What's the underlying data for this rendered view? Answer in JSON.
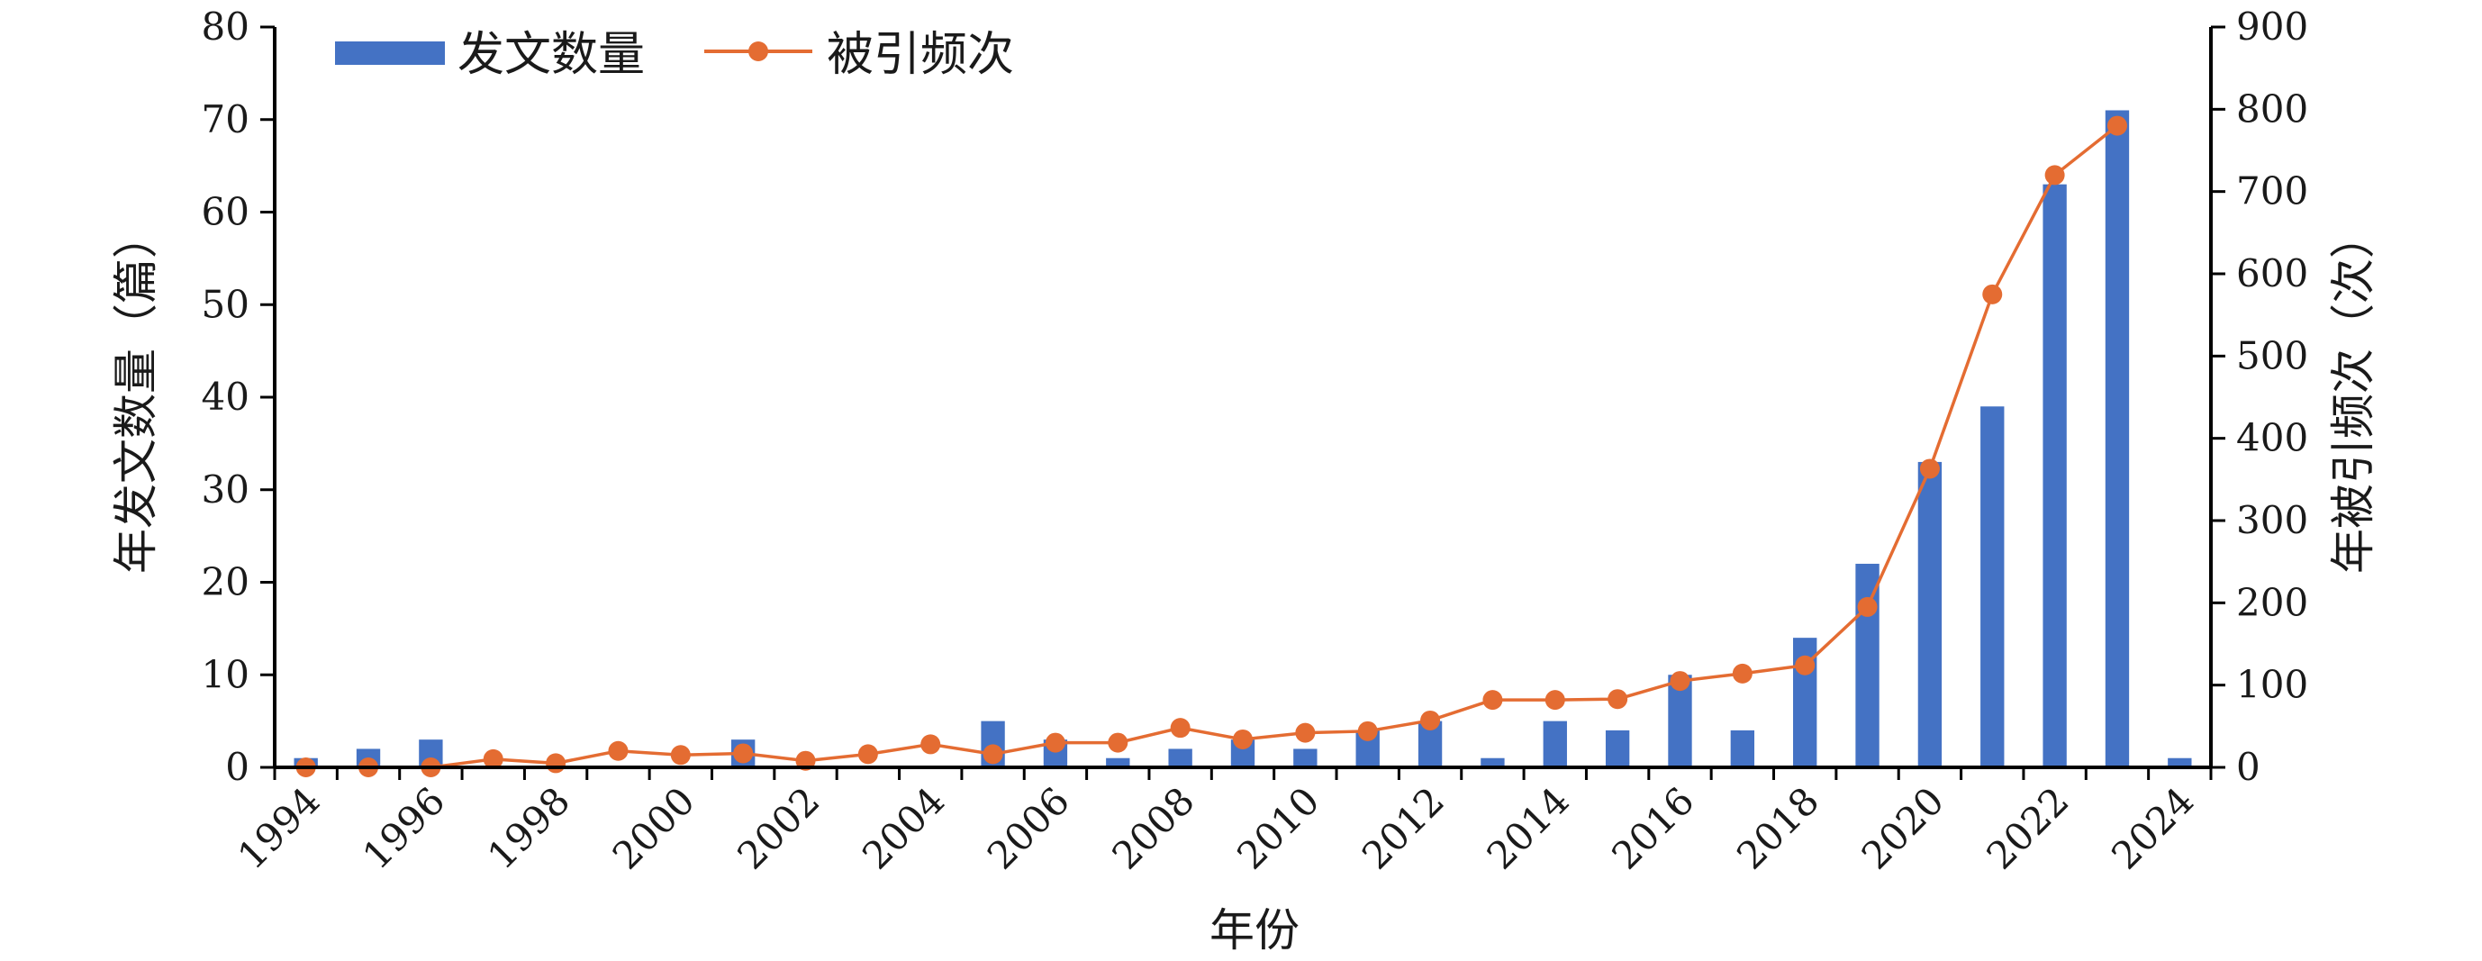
{
  "chart_data": {
    "type": "bar+line",
    "title": "",
    "xlabel": "年份",
    "ylabel_left": "年发文数量（篇）",
    "ylabel_right": "年被引频次（次）",
    "ylim_left": [
      0,
      80
    ],
    "ylim_right": [
      0,
      900
    ],
    "yticks_left": [
      0,
      10,
      20,
      30,
      40,
      50,
      60,
      70,
      80
    ],
    "yticks_right": [
      0,
      100,
      200,
      300,
      400,
      500,
      600,
      700,
      800,
      900
    ],
    "x": [
      1994,
      1995,
      1996,
      1997,
      1998,
      1999,
      2000,
      2001,
      2002,
      2003,
      2004,
      2005,
      2006,
      2007,
      2008,
      2009,
      2010,
      2011,
      2012,
      2013,
      2014,
      2015,
      2016,
      2017,
      2018,
      2019,
      2020,
      2021,
      2022,
      2023,
      2024
    ],
    "xtick_labels": [
      "1994",
      "1996",
      "1998",
      "2000",
      "2002",
      "2004",
      "2006",
      "2008",
      "2010",
      "2012",
      "2014",
      "2016",
      "2018",
      "2020",
      "2022",
      "2024"
    ],
    "grid": false,
    "legend_position": "top-left",
    "series": [
      {
        "name": "发文数量",
        "type": "bar",
        "axis": "left",
        "color": "#4472C4",
        "values": [
          1,
          2,
          3,
          0,
          0,
          0,
          0,
          3,
          0,
          0,
          0,
          5,
          3,
          1,
          2,
          3,
          2,
          4,
          5,
          1,
          5,
          4,
          10,
          4,
          14,
          22,
          33,
          39,
          63,
          71,
          1
        ]
      },
      {
        "name": "被引频次",
        "type": "line",
        "axis": "right",
        "color": "#E46C32",
        "values": [
          0,
          0,
          0,
          10,
          5,
          20,
          15,
          17,
          8,
          16,
          28,
          16,
          30,
          30,
          48,
          34,
          42,
          44,
          57,
          82,
          82,
          83,
          105,
          114,
          124,
          195,
          363,
          575,
          720,
          780,
          null
        ]
      }
    ]
  }
}
